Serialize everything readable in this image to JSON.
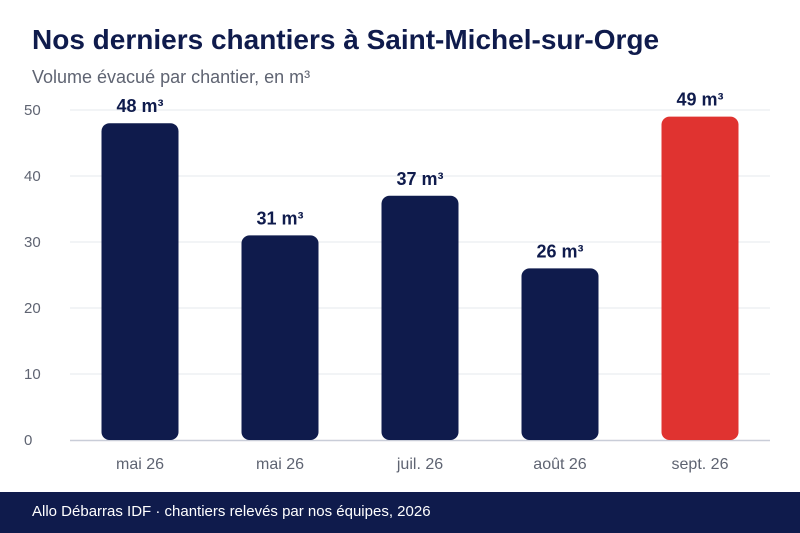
{
  "chart_data": {
    "type": "bar",
    "title": "Nos derniers chantiers à Saint-Michel-sur-Orge",
    "subtitle": "Volume évacué par chantier, en m³",
    "categories": [
      "mai 26",
      "mai 26",
      "juil. 26",
      "août 26",
      "sept. 26"
    ],
    "values": [
      48,
      31,
      37,
      26,
      49
    ],
    "data_labels": [
      "48 m³",
      "31 m³",
      "37 m³",
      "26 m³",
      "49 m³"
    ],
    "ylim": [
      0,
      50
    ],
    "yticks": [
      0,
      10,
      20,
      30,
      40,
      50
    ],
    "grid": true,
    "colors": {
      "default": "#0f1b4c",
      "highlight": "#e03330",
      "highlight_index": 4
    }
  },
  "footer": {
    "source": "Allo Débarras IDF · chantiers relevés par nos équipes, 2026"
  }
}
